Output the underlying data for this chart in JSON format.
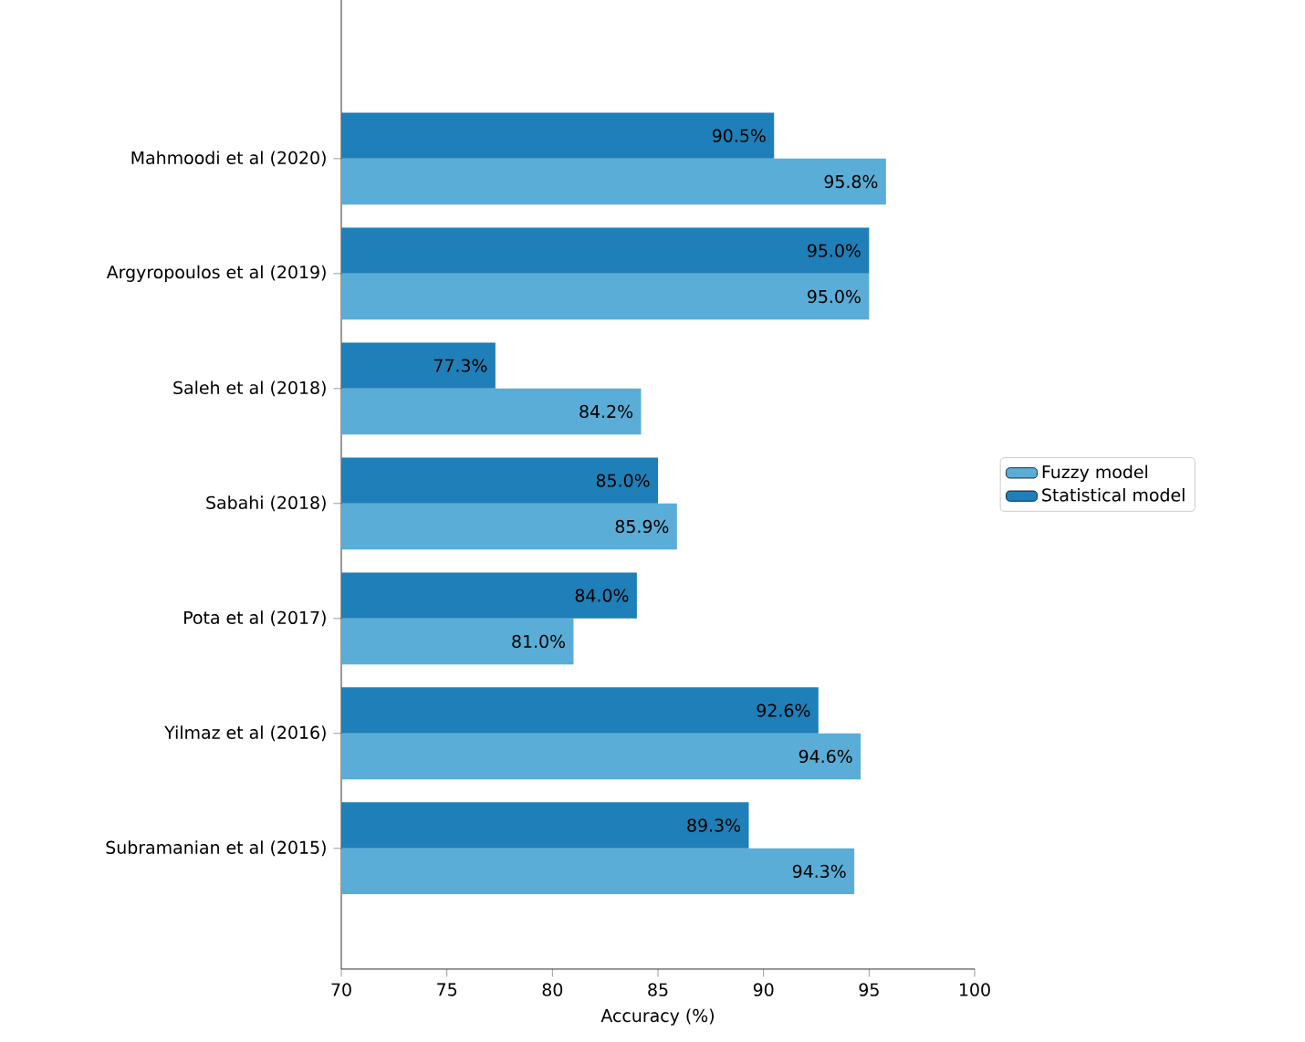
{
  "chart_data": {
    "type": "bar",
    "orientation": "horizontal",
    "xlabel": "Accuracy (%)",
    "categories": [
      "Mahmoodi et al (2020)",
      "Argyropoulos et al (2019)",
      "Saleh et al (2018)",
      "Sabahi (2018)",
      "Pota et al (2017)",
      "Yilmaz et al (2016)",
      "Subramanian et al (2015)"
    ],
    "series": [
      {
        "name": "Fuzzy model",
        "color": "#5aadd6",
        "values": [
          95.8,
          95.0,
          84.2,
          85.9,
          81.0,
          94.6,
          94.3
        ],
        "value_labels": [
          "95.8%",
          "95.0%",
          "84.2%",
          "85.9%",
          "81.0%",
          "94.6%",
          "94.3%"
        ]
      },
      {
        "name": "Statistical model",
        "color": "#1f7fb8",
        "values": [
          90.5,
          95.0,
          77.3,
          85.0,
          84.0,
          92.6,
          89.3
        ],
        "value_labels": [
          "90.5%",
          "95.0%",
          "77.3%",
          "85.0%",
          "84.0%",
          "92.6%",
          "89.3%"
        ]
      }
    ],
    "xlim": [
      70,
      100
    ],
    "xticks": [
      70,
      75,
      80,
      85,
      90,
      95,
      100
    ],
    "legend": "right"
  }
}
